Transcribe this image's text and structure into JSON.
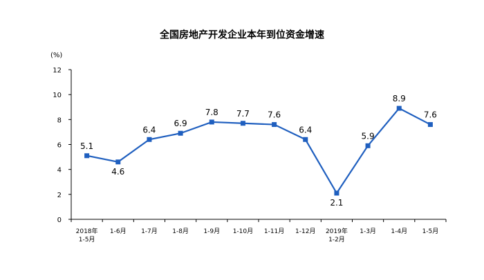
{
  "chart_data": {
    "type": "line",
    "title": "全国房地产开发企业本年到位资金增速",
    "ylabel": "(%)",
    "xlabel": "",
    "ylim": [
      0,
      12
    ],
    "yticks": [
      "0",
      "2",
      "4",
      "6",
      "8",
      "10",
      "12"
    ],
    "grid": false,
    "legend": "none",
    "categories": [
      [
        "2018年",
        "1-5月"
      ],
      [
        "1-6月"
      ],
      [
        "1-7月"
      ],
      [
        "1-8月"
      ],
      [
        "1-9月"
      ],
      [
        "1-10月"
      ],
      [
        "1-11月"
      ],
      [
        "1-12月"
      ],
      [
        "2019年",
        "1-2月"
      ],
      [
        "1-3月"
      ],
      [
        "1-4月"
      ],
      [
        "1-5月"
      ]
    ],
    "series": [
      {
        "values": [
          5.1,
          4.6,
          6.4,
          6.9,
          7.8,
          7.7,
          7.6,
          6.4,
          2.1,
          5.9,
          8.9,
          7.6
        ],
        "labels": [
          "5.1",
          "4.6",
          "6.4",
          "6.9",
          "7.8",
          "7.7",
          "7.6",
          "6.4",
          "2.1",
          "5.9",
          "8.9",
          "7.6"
        ],
        "label_positions": [
          "above",
          "below",
          "above",
          "above",
          "above",
          "above",
          "above",
          "above",
          "below",
          "above",
          "above",
          "above"
        ],
        "color": "#1f5fbf"
      }
    ]
  }
}
